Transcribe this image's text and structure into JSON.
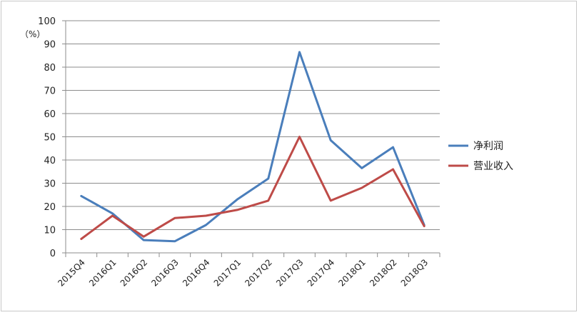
{
  "chart_data": {
    "type": "line",
    "unit_label": "（%）",
    "categories": [
      "2015Q4",
      "2016Q1",
      "2016Q2",
      "2016Q3",
      "2016Q4",
      "2017Q1",
      "2017Q2",
      "2017Q3",
      "2017Q4",
      "2018Q1",
      "2018Q2",
      "2018Q3"
    ],
    "ylim": [
      0,
      100
    ],
    "yticks": [
      0,
      10,
      20,
      30,
      40,
      50,
      60,
      70,
      80,
      90,
      100
    ],
    "grid": true,
    "legend": "right",
    "series": [
      {
        "name": "净利润",
        "color": "#4a7ebb",
        "values": [
          24.5,
          17,
          5.5,
          5,
          12,
          23,
          32,
          86.5,
          48.5,
          36.5,
          45.5,
          12
        ]
      },
      {
        "name": "营业收入",
        "color": "#be4b48",
        "values": [
          6,
          16,
          7,
          15,
          16,
          18.5,
          22.5,
          50,
          22.5,
          28,
          36,
          11.5
        ]
      }
    ]
  }
}
